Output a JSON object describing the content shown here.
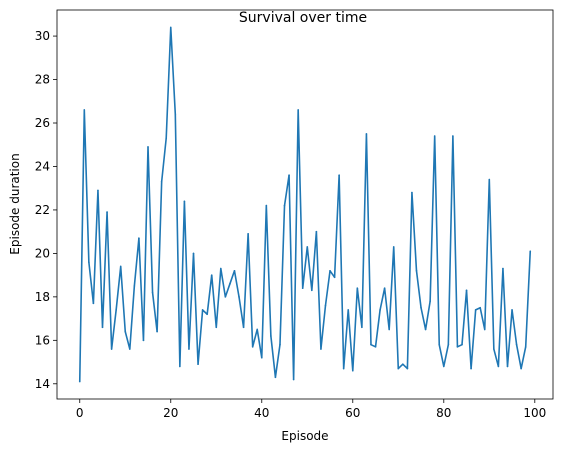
{
  "chart_data": {
    "type": "line",
    "title": "Survival over time",
    "xlabel": "Episode",
    "ylabel": "Episode duration",
    "xlim": [
      -5,
      104
    ],
    "ylim": [
      13.3,
      31.2
    ],
    "xticks": [
      0,
      20,
      40,
      60,
      80,
      100
    ],
    "yticks": [
      14,
      16,
      18,
      20,
      22,
      24,
      26,
      28,
      30
    ],
    "grid": false,
    "line_color": "#1f77b4",
    "series": [
      {
        "x": [
          0,
          1,
          2,
          3,
          4,
          5,
          6,
          7,
          8,
          9,
          10,
          11,
          12,
          13,
          14,
          15,
          16,
          17,
          18,
          19,
          20,
          21,
          22,
          23,
          24,
          25,
          26,
          27,
          28,
          29,
          30,
          31,
          32,
          33,
          34,
          35,
          36,
          37,
          38,
          39,
          40,
          41,
          42,
          43,
          44,
          45,
          46,
          47,
          48,
          49,
          50,
          51,
          52,
          53,
          54,
          55,
          56,
          57,
          58,
          59,
          60,
          61,
          62,
          63,
          64,
          65,
          66,
          67,
          68,
          69,
          70,
          71,
          72,
          73,
          74,
          75,
          76,
          77,
          78,
          79,
          80,
          81,
          82,
          83,
          84,
          85,
          86,
          87,
          88,
          89,
          90,
          91,
          92,
          93,
          94,
          95,
          96,
          97,
          98,
          99
        ],
        "values": [
          14.1,
          26.6,
          19.6,
          17.7,
          22.9,
          16.6,
          21.9,
          15.6,
          17.4,
          19.4,
          16.4,
          15.6,
          18.5,
          20.7,
          16.0,
          24.9,
          18.2,
          16.4,
          23.3,
          25.3,
          30.4,
          26.4,
          14.8,
          22.4,
          15.6,
          20.0,
          14.9,
          17.4,
          17.2,
          19.0,
          16.6,
          19.3,
          18.0,
          18.6,
          19.2,
          18.0,
          16.6,
          20.9,
          15.7,
          16.5,
          15.2,
          22.2,
          16.2,
          14.3,
          15.8,
          22.2,
          23.6,
          14.2,
          26.6,
          18.4,
          20.3,
          18.3,
          21.0,
          15.6,
          17.6,
          19.2,
          18.9,
          23.6,
          14.7,
          17.4,
          14.6,
          18.4,
          16.6,
          25.5,
          15.8,
          15.7,
          17.4,
          18.4,
          16.5,
          20.3,
          14.7,
          14.9,
          14.7,
          22.8,
          19.2,
          17.5,
          16.5,
          17.8,
          25.4,
          15.8,
          14.8,
          15.8,
          25.4,
          15.7,
          15.8,
          18.3,
          14.7,
          17.4,
          17.5,
          16.5,
          23.4,
          15.6,
          14.8,
          19.3,
          14.8,
          17.4,
          15.8,
          14.7,
          15.7,
          20.1
        ]
      }
    ]
  }
}
